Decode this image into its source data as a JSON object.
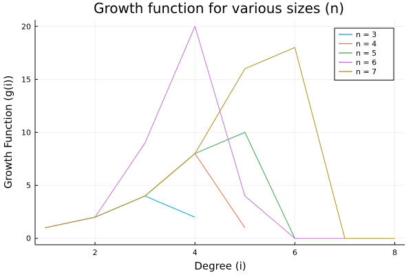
{
  "chart_data": {
    "type": "line",
    "title": "Growth function for various sizes (n)",
    "xlabel": "Degree (i)",
    "ylabel": "Growth Function (g(i))",
    "xlim": [
      0.8,
      8.2
    ],
    "ylim": [
      -0.6,
      20.6
    ],
    "xticks": [
      2,
      4,
      6,
      8
    ],
    "yticks": [
      0,
      5,
      10,
      15,
      20
    ],
    "grid": true,
    "legend_position": "top-right",
    "series": [
      {
        "name": "n = 3",
        "color": "#009AFA",
        "x": [
          1,
          2,
          3,
          4
        ],
        "y": [
          1,
          2,
          4,
          2
        ]
      },
      {
        "name": "n = 4",
        "color": "#E26F46",
        "x": [
          1,
          2,
          3,
          4,
          5
        ],
        "y": [
          1,
          2,
          4,
          8,
          1
        ]
      },
      {
        "name": "n = 5",
        "color": "#3DA44D",
        "x": [
          1,
          2,
          3,
          4,
          5,
          6
        ],
        "y": [
          1,
          2,
          4,
          8,
          10,
          0
        ]
      },
      {
        "name": "n = 6",
        "color": "#C271D2",
        "x": [
          1,
          2,
          3,
          4,
          5,
          6,
          7
        ],
        "y": [
          1,
          2,
          9,
          20,
          4,
          0,
          0
        ]
      },
      {
        "name": "n = 7",
        "color": "#AC8D18",
        "x": [
          1,
          2,
          3,
          4,
          5,
          6,
          7,
          8
        ],
        "y": [
          1,
          2,
          4,
          8,
          16,
          18,
          0,
          0
        ]
      }
    ]
  }
}
